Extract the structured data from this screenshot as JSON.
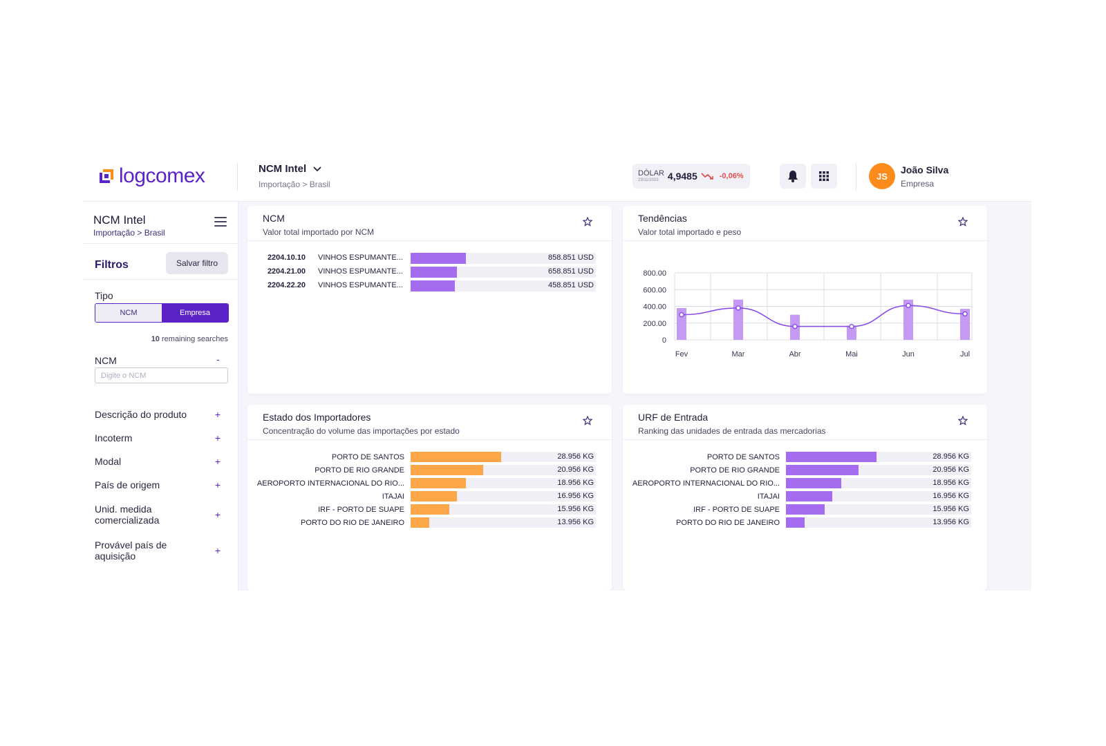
{
  "header": {
    "logo_text": "logcomex",
    "title": "NCM Intel",
    "breadcrumb": "Importação  >  Brasil",
    "dollar": {
      "label": "DÓLAR",
      "date": "23/11/2023",
      "value": "4,9485",
      "change": "-0,06%",
      "change_color": "#e24f4f"
    },
    "notifications_icon": "bell-icon",
    "apps_icon": "grid-icon",
    "user": {
      "initials": "JS",
      "name": "João Silva",
      "company": "Empresa",
      "avatar_color": "#fb8c1c"
    }
  },
  "sidebar": {
    "title": "NCM Intel",
    "subtitle": "Importação > Brasil",
    "filters_title": "Filtros",
    "save_filter_label": "Salvar filtro",
    "tipo_label": "Tipo",
    "tipo_options": [
      "NCM",
      "Empresa"
    ],
    "tipo_selected": "Empresa",
    "remaining_count": "10",
    "remaining_text": " remaining searches",
    "ncm_label": "NCM",
    "ncm_toggle": "-",
    "ncm_placeholder": "Digite o NCM",
    "filter_items": [
      {
        "label": "Descrição do produto",
        "toggle": "+"
      },
      {
        "label": "Incoterm",
        "toggle": "+"
      },
      {
        "label": "Modal",
        "toggle": "+"
      },
      {
        "label": "País de origem",
        "toggle": "+"
      },
      {
        "label": "Unid. medida comercializada",
        "toggle": "+"
      },
      {
        "label": "Provável país de aquisição",
        "toggle": "+"
      }
    ]
  },
  "cards": {
    "ncm": {
      "title": "NCM",
      "subtitle": "Valor total importado por NCM",
      "rows": [
        {
          "code": "2204.10.10",
          "description": "VINHOS ESPUMANTE...",
          "value": "858.851 USD",
          "share": 0.3
        },
        {
          "code": "2204.21.00",
          "description": "VINHOS ESPUMANTE...",
          "value": "658.851 USD",
          "share": 0.25
        },
        {
          "code": "2204.22.20",
          "description": "VINHOS ESPUMANTE...",
          "value": "458.851 USD",
          "share": 0.24
        }
      ]
    },
    "trends": {
      "title": "Tendências",
      "subtitle": "Valor total importado e peso"
    },
    "states": {
      "title": "Estado dos Importadores",
      "subtitle": "Concentração do volume das importações por estado",
      "bar_color": "#fca64a",
      "rows": [
        {
          "label": "PORTO DE SANTOS",
          "value": "28.956 KG",
          "share": 0.49
        },
        {
          "label": "PORTO DE RIO GRANDE",
          "value": "20.956 KG",
          "share": 0.39
        },
        {
          "label": "AEROPORTO INTERNACIONAL DO RIO...",
          "value": "18.956 KG",
          "share": 0.3
        },
        {
          "label": "ITAJAI",
          "value": "16.956 KG",
          "share": 0.25
        },
        {
          "label": "IRF - PORTO DE SUAPE",
          "value": "15.956 KG",
          "share": 0.21
        },
        {
          "label": "PORTO DO RIO DE JANEIRO",
          "value": "13.956 KG",
          "share": 0.1
        }
      ]
    },
    "urf": {
      "title": "URF de Entrada",
      "subtitle": "Ranking das unidades de entrada das mercadorias",
      "bar_color": "#a56cf0",
      "rows": [
        {
          "label": "PORTO DE SANTOS",
          "value": "28.956 KG",
          "share": 0.49
        },
        {
          "label": "PORTO DE RIO GRANDE",
          "value": "20.956 KG",
          "share": 0.39
        },
        {
          "label": "AEROPORTO INTERNACIONAL DO RIO...",
          "value": "18.956 KG",
          "share": 0.3
        },
        {
          "label": "ITAJAI",
          "value": "16.956 KG",
          "share": 0.25
        },
        {
          "label": "IRF - PORTO DE SUAPE",
          "value": "15.956 KG",
          "share": 0.21
        },
        {
          "label": "PORTO DO RIO DE JANEIRO",
          "value": "13.956 KG",
          "share": 0.1
        }
      ]
    }
  },
  "chart_data": {
    "type": "bar",
    "categories": [
      "Fev",
      "Mar",
      "Abr",
      "Mai",
      "Jun",
      "Jul"
    ],
    "y_ticks": [
      "800.00",
      "600.00",
      "400.00",
      "200.00",
      "0"
    ],
    "ylim": [
      0,
      800
    ],
    "grid": true,
    "series": [
      {
        "type": "bar",
        "values": [
          380,
          480,
          300,
          170,
          480,
          370
        ],
        "color": "#c49af5"
      },
      {
        "type": "line",
        "values": [
          300,
          380,
          160,
          160,
          410,
          310
        ],
        "color": "#8a4ee8"
      }
    ]
  }
}
